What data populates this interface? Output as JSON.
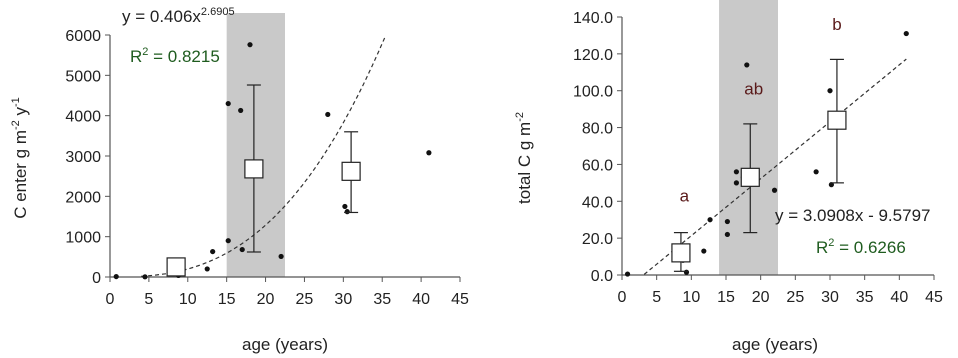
{
  "chart_data": [
    {
      "type": "scatter",
      "xlabel": "age (years)",
      "ylabel": "C enter g m",
      "ylabel_exp1": "-2",
      "ylabel_mid": " y",
      "ylabel_exp2": "-1",
      "xlim": [
        0,
        45
      ],
      "ylim": [
        0,
        6000
      ],
      "xticks": [
        "0",
        "5",
        "10",
        "15",
        "20",
        "25",
        "30",
        "35",
        "40",
        "45"
      ],
      "yticks": [
        "0",
        "1000",
        "2000",
        "3000",
        "4000",
        "5000",
        "6000"
      ],
      "shaded_x_range": [
        15,
        22.5
      ],
      "points": [
        {
          "x": 0.8,
          "y": 10
        },
        {
          "x": 4.5,
          "y": 5
        },
        {
          "x": 8.8,
          "y": 40
        },
        {
          "x": 12.5,
          "y": 200
        },
        {
          "x": 13.2,
          "y": 630
        },
        {
          "x": 15.2,
          "y": 4300
        },
        {
          "x": 15.2,
          "y": 900
        },
        {
          "x": 16.8,
          "y": 4130
        },
        {
          "x": 17.0,
          "y": 680
        },
        {
          "x": 18.0,
          "y": 5760
        },
        {
          "x": 22.0,
          "y": 510
        },
        {
          "x": 28.0,
          "y": 4030
        },
        {
          "x": 30.2,
          "y": 1750
        },
        {
          "x": 30.5,
          "y": 1620
        },
        {
          "x": 41.0,
          "y": 3080
        }
      ],
      "means": [
        {
          "x": 8.5,
          "y": 250,
          "err_lo": 250,
          "err_hi": 250
        },
        {
          "x": 18.5,
          "y": 2680,
          "err_lo": 620,
          "err_hi": 4760
        },
        {
          "x": 31.0,
          "y": 2620,
          "err_lo": 1600,
          "err_hi": 3600
        }
      ],
      "fit": {
        "type": "power",
        "a": 0.406,
        "b": 2.6905,
        "x_from": 4,
        "x_to": 35.3
      },
      "equation_base": "y = 0.406x",
      "equation_exp": "2.6905",
      "r2_text": "R",
      "r2_sup": "2",
      "r2_value": " = 0.8215"
    },
    {
      "type": "scatter",
      "xlabel": "age (years)",
      "ylabel": "total C g m",
      "ylabel_exp1": "-2",
      "xlim": [
        0,
        45
      ],
      "ylim": [
        0,
        140
      ],
      "xticks": [
        "0",
        "5",
        "10",
        "15",
        "20",
        "25",
        "30",
        "35",
        "40",
        "45"
      ],
      "yticks": [
        "0.0",
        "20.0",
        "40.0",
        "60.0",
        "80.0",
        "100.0",
        "120.0",
        "140.0"
      ],
      "shaded_x_range": [
        14,
        22.5
      ],
      "points": [
        {
          "x": 0.8,
          "y": 0.5
        },
        {
          "x": 8.8,
          "y": 8
        },
        {
          "x": 9.3,
          "y": 1.5
        },
        {
          "x": 11.8,
          "y": 13
        },
        {
          "x": 12.7,
          "y": 30
        },
        {
          "x": 15.2,
          "y": 29
        },
        {
          "x": 15.2,
          "y": 22
        },
        {
          "x": 16.5,
          "y": 50
        },
        {
          "x": 16.5,
          "y": 56
        },
        {
          "x": 17.5,
          "y": 53
        },
        {
          "x": 18.0,
          "y": 114
        },
        {
          "x": 22.0,
          "y": 46
        },
        {
          "x": 28.0,
          "y": 56
        },
        {
          "x": 30.0,
          "y": 100
        },
        {
          "x": 30.2,
          "y": 49
        },
        {
          "x": 41.0,
          "y": 131
        }
      ],
      "means": [
        {
          "x": 8.5,
          "y": 12,
          "err_lo": 2,
          "err_hi": 23
        },
        {
          "x": 18.5,
          "y": 53,
          "err_lo": 23,
          "err_hi": 82
        },
        {
          "x": 31.0,
          "y": 84,
          "err_lo": 50,
          "err_hi": 117
        }
      ],
      "fit": {
        "type": "linear",
        "a": 3.0908,
        "b": -9.5797,
        "x_from": 3.2,
        "x_to": 41
      },
      "group_labels": [
        {
          "text": "a",
          "x": 9.0,
          "y": 40
        },
        {
          "text": "ab",
          "x": 19.0,
          "y": 98
        },
        {
          "text": "b",
          "x": 31.0,
          "y": 133
        }
      ],
      "equation": "y = 3.0908x - 9.5797",
      "r2_text": "R",
      "r2_sup": "2",
      "r2_value": " = 0.6266"
    }
  ]
}
